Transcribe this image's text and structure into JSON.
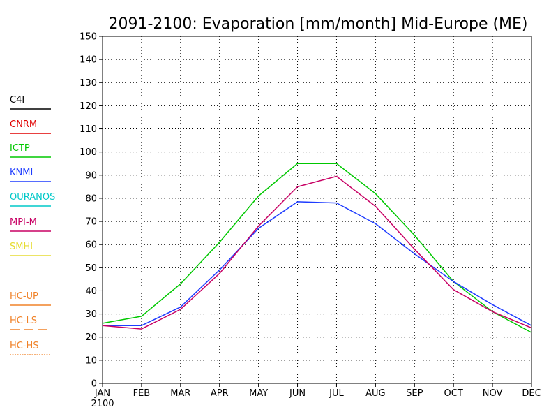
{
  "chart_data": {
    "type": "line",
    "title": "2091-2100: Evaporation [mm/month] Mid-Europe (ME)",
    "xlabel": "",
    "ylabel": "",
    "categories": [
      "JAN",
      "FEB",
      "MAR",
      "APR",
      "MAY",
      "JUN",
      "JUL",
      "AUG",
      "SEP",
      "OCT",
      "NOV",
      "DEC"
    ],
    "x_sublabel": "2100",
    "ylim": [
      0,
      150
    ],
    "yticks": [
      0,
      10,
      20,
      30,
      40,
      50,
      60,
      70,
      80,
      90,
      100,
      110,
      120,
      130,
      140,
      150
    ],
    "grid": true,
    "legend_placement": "left",
    "legend": [
      {
        "name": "C4I",
        "color": "#000000",
        "style": "solid"
      },
      {
        "name": "CNRM",
        "color": "#e00000",
        "style": "solid"
      },
      {
        "name": "ICTP",
        "color": "#00c800",
        "style": "solid"
      },
      {
        "name": "KNMI",
        "color": "#1e3cff",
        "style": "solid"
      },
      {
        "name": "OURANOS",
        "color": "#00c8c8",
        "style": "solid"
      },
      {
        "name": "MPI-M",
        "color": "#c80064",
        "style": "solid"
      },
      {
        "name": "SMHI",
        "color": "#e6dc32",
        "style": "solid"
      },
      {
        "name": "HC-UP",
        "color": "#f08228",
        "style": "solid"
      },
      {
        "name": "HC-LS",
        "color": "#f08228",
        "style": "dashed"
      },
      {
        "name": "HC-HS",
        "color": "#f08228",
        "style": "dotted"
      }
    ],
    "series": [
      {
        "name": "ICTP",
        "color": "#00c800",
        "values": [
          26,
          29,
          43,
          61,
          81,
          95,
          95,
          82,
          64,
          44,
          31,
          22
        ]
      },
      {
        "name": "KNMI",
        "color": "#1e3cff",
        "values": [
          25,
          25,
          33,
          49,
          67,
          78.5,
          78,
          69,
          56,
          44,
          34,
          25
        ]
      },
      {
        "name": "MPI-M",
        "color": "#c80064",
        "values": [
          25,
          23.5,
          32,
          47.5,
          68,
          85,
          89.5,
          76.5,
          58,
          40.5,
          31,
          24
        ]
      }
    ]
  }
}
